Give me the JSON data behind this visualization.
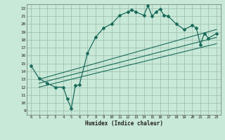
{
  "xlabel": "Humidex (Indice chaleur)",
  "bg_color": "#c8e8d8",
  "line_color": "#1a6b5a",
  "grid_color": "#99bbaa",
  "xlim": [
    -0.5,
    23.5
  ],
  "ylim": [
    8.5,
    22.5
  ],
  "xticks": [
    0,
    1,
    2,
    3,
    4,
    5,
    6,
    7,
    8,
    9,
    10,
    11,
    12,
    13,
    14,
    15,
    16,
    17,
    18,
    19,
    20,
    21,
    22,
    23
  ],
  "yticks": [
    9,
    10,
    11,
    12,
    13,
    14,
    15,
    16,
    17,
    18,
    19,
    20,
    21,
    22
  ],
  "main_line_x": [
    0,
    1,
    2,
    3,
    4,
    4.5,
    5,
    5.5,
    6,
    7,
    8,
    9,
    10,
    11,
    12,
    12.5,
    13,
    14,
    14.5,
    15,
    15.5,
    16,
    16.5,
    17,
    18,
    19,
    20,
    20.5,
    21,
    21.5,
    22,
    23
  ],
  "main_line_y": [
    14.7,
    13.1,
    12.5,
    12.0,
    12.0,
    10.5,
    9.3,
    12.2,
    12.3,
    16.3,
    18.3,
    19.5,
    20.0,
    21.1,
    21.5,
    21.8,
    21.5,
    21.1,
    22.3,
    21.0,
    21.5,
    21.9,
    21.1,
    21.0,
    20.0,
    19.3,
    19.8,
    19.5,
    17.4,
    18.8,
    18.2,
    18.8
  ],
  "line1_x": [
    1,
    23
  ],
  "line1_y": [
    13.0,
    19.3
  ],
  "line2_x": [
    1,
    23
  ],
  "line2_y": [
    12.5,
    18.3
  ],
  "line3_x": [
    1,
    23
  ],
  "line3_y": [
    12.0,
    17.5
  ]
}
